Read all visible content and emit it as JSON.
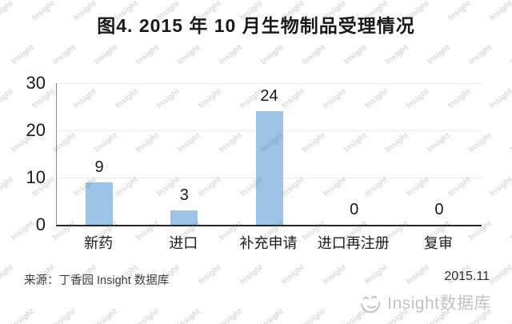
{
  "title": "图4. 2015 年 10 月生物制品受理情况",
  "chart_data": {
    "type": "bar",
    "title": "图4. 2015 年 10 月生物制品受理情况",
    "categories": [
      "新药",
      "进口",
      "补充申请",
      "进口再注册",
      "复审"
    ],
    "values": [
      9,
      3,
      24,
      0,
      0
    ],
    "xlabel": "",
    "ylabel": "",
    "ylim": [
      0,
      30
    ],
    "yticks": [
      0,
      10,
      20,
      30
    ],
    "bar_color": "#9DC3E6",
    "grid": "horizontal",
    "legend": "none"
  },
  "footer": {
    "source": "来源：丁香园 Insight 数据库",
    "date": "2015.11"
  },
  "watermark": {
    "tile_text": "Insight",
    "brand_text": "Insight数据库",
    "brand_logo": "smiley-face-icon",
    "tile_color": "#d8d8d8",
    "brand_color": "#c3c3c3"
  }
}
